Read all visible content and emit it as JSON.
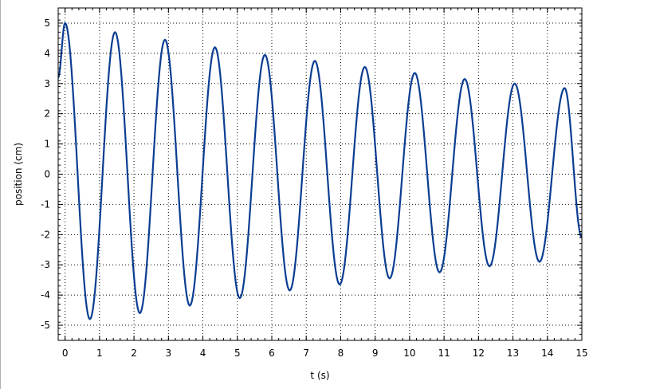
{
  "chart_data": {
    "type": "line",
    "title": "",
    "xlabel": "t (s)",
    "ylabel": "position (cm)",
    "xlim": [
      -0.2,
      15
    ],
    "ylim": [
      -5.5,
      5.5
    ],
    "xticks": [
      0,
      1,
      2,
      3,
      4,
      5,
      6,
      7,
      8,
      9,
      10,
      11,
      12,
      13,
      14,
      15
    ],
    "yticks": [
      -5,
      -4,
      -3,
      -2,
      -1,
      0,
      1,
      2,
      3,
      4,
      5
    ],
    "grid": true,
    "colors": {
      "line": "#0a3d91",
      "grid": "#000000",
      "frame": "#000000"
    },
    "series": [
      {
        "x": [
          -0.2,
          0.0,
          0.72,
          1.45,
          2.17,
          2.9,
          3.62,
          4.35,
          5.07,
          5.8,
          6.52,
          7.25,
          7.97,
          8.7,
          9.42,
          10.15,
          10.87,
          11.6,
          12.32,
          13.05,
          13.77,
          14.5,
          15.0
        ],
        "y": [
          3.2,
          5.0,
          -4.8,
          4.7,
          -4.6,
          4.45,
          -4.35,
          4.2,
          -4.1,
          3.95,
          -3.85,
          3.75,
          -3.65,
          3.55,
          -3.45,
          3.35,
          -3.25,
          3.15,
          -3.05,
          3.0,
          -2.9,
          2.85,
          -2.1
        ]
      }
    ]
  }
}
